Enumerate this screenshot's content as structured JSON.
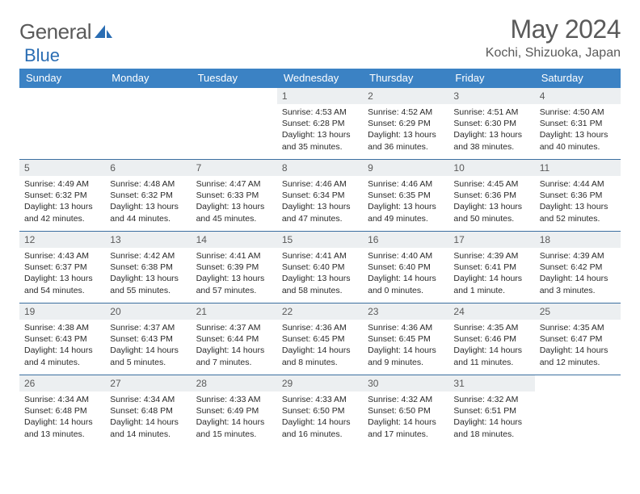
{
  "logo": {
    "prefix": "General",
    "suffix": "Blue"
  },
  "colors": {
    "header_bg": "#3b82c4",
    "week_border": "#3b6fa0",
    "daynum_bg": "#eceff1",
    "text_gray": "#5a5a5a",
    "logo_blue": "#2a6db3"
  },
  "month_title": "May 2024",
  "location": "Kochi, Shizuoka, Japan",
  "weekdays": [
    "Sunday",
    "Monday",
    "Tuesday",
    "Wednesday",
    "Thursday",
    "Friday",
    "Saturday"
  ],
  "weeks": [
    [
      {
        "n": "",
        "lines": []
      },
      {
        "n": "",
        "lines": []
      },
      {
        "n": "",
        "lines": []
      },
      {
        "n": "1",
        "lines": [
          "Sunrise: 4:53 AM",
          "Sunset: 6:28 PM",
          "Daylight: 13 hours",
          "and 35 minutes."
        ]
      },
      {
        "n": "2",
        "lines": [
          "Sunrise: 4:52 AM",
          "Sunset: 6:29 PM",
          "Daylight: 13 hours",
          "and 36 minutes."
        ]
      },
      {
        "n": "3",
        "lines": [
          "Sunrise: 4:51 AM",
          "Sunset: 6:30 PM",
          "Daylight: 13 hours",
          "and 38 minutes."
        ]
      },
      {
        "n": "4",
        "lines": [
          "Sunrise: 4:50 AM",
          "Sunset: 6:31 PM",
          "Daylight: 13 hours",
          "and 40 minutes."
        ]
      }
    ],
    [
      {
        "n": "5",
        "lines": [
          "Sunrise: 4:49 AM",
          "Sunset: 6:32 PM",
          "Daylight: 13 hours",
          "and 42 minutes."
        ]
      },
      {
        "n": "6",
        "lines": [
          "Sunrise: 4:48 AM",
          "Sunset: 6:32 PM",
          "Daylight: 13 hours",
          "and 44 minutes."
        ]
      },
      {
        "n": "7",
        "lines": [
          "Sunrise: 4:47 AM",
          "Sunset: 6:33 PM",
          "Daylight: 13 hours",
          "and 45 minutes."
        ]
      },
      {
        "n": "8",
        "lines": [
          "Sunrise: 4:46 AM",
          "Sunset: 6:34 PM",
          "Daylight: 13 hours",
          "and 47 minutes."
        ]
      },
      {
        "n": "9",
        "lines": [
          "Sunrise: 4:46 AM",
          "Sunset: 6:35 PM",
          "Daylight: 13 hours",
          "and 49 minutes."
        ]
      },
      {
        "n": "10",
        "lines": [
          "Sunrise: 4:45 AM",
          "Sunset: 6:36 PM",
          "Daylight: 13 hours",
          "and 50 minutes."
        ]
      },
      {
        "n": "11",
        "lines": [
          "Sunrise: 4:44 AM",
          "Sunset: 6:36 PM",
          "Daylight: 13 hours",
          "and 52 minutes."
        ]
      }
    ],
    [
      {
        "n": "12",
        "lines": [
          "Sunrise: 4:43 AM",
          "Sunset: 6:37 PM",
          "Daylight: 13 hours",
          "and 54 minutes."
        ]
      },
      {
        "n": "13",
        "lines": [
          "Sunrise: 4:42 AM",
          "Sunset: 6:38 PM",
          "Daylight: 13 hours",
          "and 55 minutes."
        ]
      },
      {
        "n": "14",
        "lines": [
          "Sunrise: 4:41 AM",
          "Sunset: 6:39 PM",
          "Daylight: 13 hours",
          "and 57 minutes."
        ]
      },
      {
        "n": "15",
        "lines": [
          "Sunrise: 4:41 AM",
          "Sunset: 6:40 PM",
          "Daylight: 13 hours",
          "and 58 minutes."
        ]
      },
      {
        "n": "16",
        "lines": [
          "Sunrise: 4:40 AM",
          "Sunset: 6:40 PM",
          "Daylight: 14 hours",
          "and 0 minutes."
        ]
      },
      {
        "n": "17",
        "lines": [
          "Sunrise: 4:39 AM",
          "Sunset: 6:41 PM",
          "Daylight: 14 hours",
          "and 1 minute."
        ]
      },
      {
        "n": "18",
        "lines": [
          "Sunrise: 4:39 AM",
          "Sunset: 6:42 PM",
          "Daylight: 14 hours",
          "and 3 minutes."
        ]
      }
    ],
    [
      {
        "n": "19",
        "lines": [
          "Sunrise: 4:38 AM",
          "Sunset: 6:43 PM",
          "Daylight: 14 hours",
          "and 4 minutes."
        ]
      },
      {
        "n": "20",
        "lines": [
          "Sunrise: 4:37 AM",
          "Sunset: 6:43 PM",
          "Daylight: 14 hours",
          "and 5 minutes."
        ]
      },
      {
        "n": "21",
        "lines": [
          "Sunrise: 4:37 AM",
          "Sunset: 6:44 PM",
          "Daylight: 14 hours",
          "and 7 minutes."
        ]
      },
      {
        "n": "22",
        "lines": [
          "Sunrise: 4:36 AM",
          "Sunset: 6:45 PM",
          "Daylight: 14 hours",
          "and 8 minutes."
        ]
      },
      {
        "n": "23",
        "lines": [
          "Sunrise: 4:36 AM",
          "Sunset: 6:45 PM",
          "Daylight: 14 hours",
          "and 9 minutes."
        ]
      },
      {
        "n": "24",
        "lines": [
          "Sunrise: 4:35 AM",
          "Sunset: 6:46 PM",
          "Daylight: 14 hours",
          "and 11 minutes."
        ]
      },
      {
        "n": "25",
        "lines": [
          "Sunrise: 4:35 AM",
          "Sunset: 6:47 PM",
          "Daylight: 14 hours",
          "and 12 minutes."
        ]
      }
    ],
    [
      {
        "n": "26",
        "lines": [
          "Sunrise: 4:34 AM",
          "Sunset: 6:48 PM",
          "Daylight: 14 hours",
          "and 13 minutes."
        ]
      },
      {
        "n": "27",
        "lines": [
          "Sunrise: 4:34 AM",
          "Sunset: 6:48 PM",
          "Daylight: 14 hours",
          "and 14 minutes."
        ]
      },
      {
        "n": "28",
        "lines": [
          "Sunrise: 4:33 AM",
          "Sunset: 6:49 PM",
          "Daylight: 14 hours",
          "and 15 minutes."
        ]
      },
      {
        "n": "29",
        "lines": [
          "Sunrise: 4:33 AM",
          "Sunset: 6:50 PM",
          "Daylight: 14 hours",
          "and 16 minutes."
        ]
      },
      {
        "n": "30",
        "lines": [
          "Sunrise: 4:32 AM",
          "Sunset: 6:50 PM",
          "Daylight: 14 hours",
          "and 17 minutes."
        ]
      },
      {
        "n": "31",
        "lines": [
          "Sunrise: 4:32 AM",
          "Sunset: 6:51 PM",
          "Daylight: 14 hours",
          "and 18 minutes."
        ]
      },
      {
        "n": "",
        "lines": []
      }
    ]
  ]
}
